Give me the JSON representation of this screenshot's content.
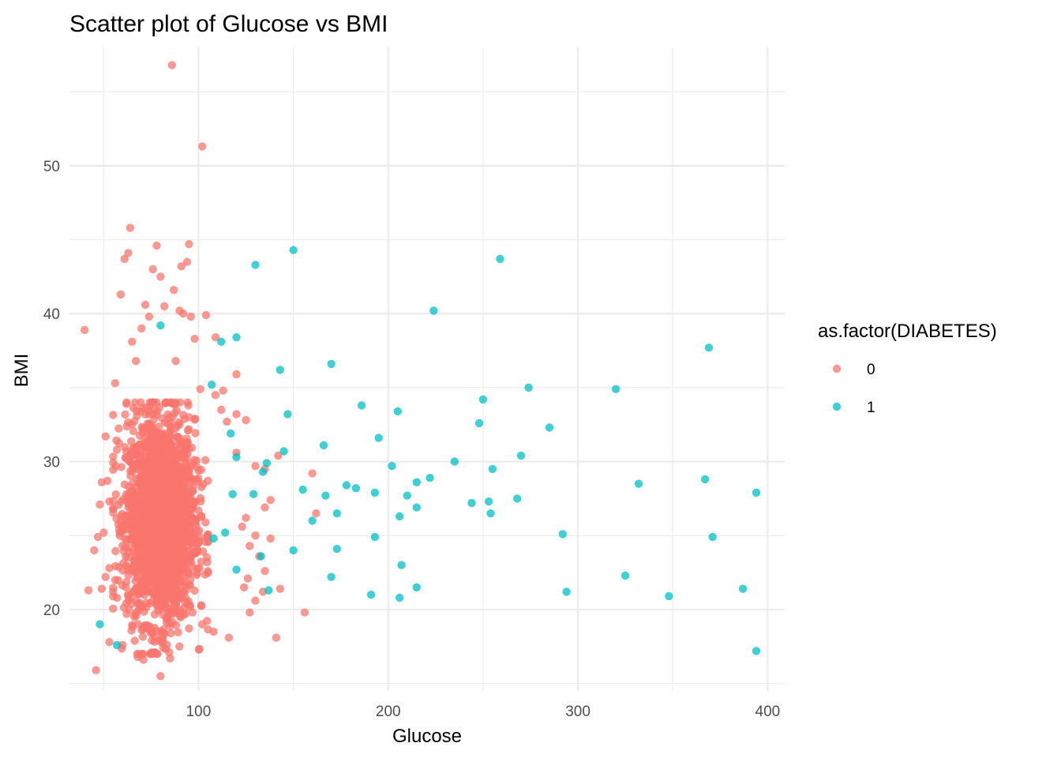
{
  "chart_data": {
    "type": "scatter",
    "title": "Scatter plot of Glucose vs BMI",
    "xlabel": "Glucose",
    "ylabel": "BMI",
    "xlim": [
      32,
      409
    ],
    "ylim": [
      14.5,
      58
    ],
    "x_ticks": [
      100,
      200,
      300,
      400
    ],
    "y_ticks": [
      20,
      30,
      40,
      50
    ],
    "grid": true,
    "legend": {
      "title": "as.factor(DIABETES)",
      "position": "right",
      "entries": [
        "0",
        "1"
      ]
    },
    "colors": {
      "0": "#F8766D",
      "1": "#00BFC4"
    },
    "series": [
      {
        "name": "0",
        "points": [
          [
            86,
            56.8
          ],
          [
            102,
            51.3
          ],
          [
            64,
            45.8
          ],
          [
            95,
            44.7
          ],
          [
            63,
            44.1
          ],
          [
            78,
            44.6
          ],
          [
            61,
            43.7
          ],
          [
            94,
            43.5
          ],
          [
            91,
            43.2
          ],
          [
            76,
            43.0
          ],
          [
            80,
            42.5
          ],
          [
            40,
            38.9
          ],
          [
            59,
            41.3
          ],
          [
            87,
            41.6
          ],
          [
            72,
            40.6
          ],
          [
            90,
            40.2
          ],
          [
            92,
            40.0
          ],
          [
            104,
            39.9
          ],
          [
            74,
            39.8
          ],
          [
            96,
            39.8
          ],
          [
            82,
            40.5
          ],
          [
            109,
            38.4
          ],
          [
            98,
            38.3
          ],
          [
            65,
            38.1
          ],
          [
            67,
            36.8
          ],
          [
            88,
            36.8
          ],
          [
            70,
            39.0
          ],
          [
            120,
            35.9
          ],
          [
            56,
            35.3
          ],
          [
            113,
            34.8
          ],
          [
            109,
            34.5
          ],
          [
            101,
            34.9
          ],
          [
            51,
            31.7
          ],
          [
            62,
            33.9
          ],
          [
            57,
            30.8
          ],
          [
            112,
            33.5
          ],
          [
            115,
            32.7
          ],
          [
            120,
            33.2
          ],
          [
            125,
            32.8
          ],
          [
            120,
            30.6
          ],
          [
            135,
            29.5
          ],
          [
            142,
            30.4
          ],
          [
            130,
            29.7
          ],
          [
            160,
            29.2
          ],
          [
            52,
            28.7
          ],
          [
            49,
            28.6
          ],
          [
            48,
            27.1
          ],
          [
            53,
            27.3
          ],
          [
            138,
            27.4
          ],
          [
            135,
            26.9
          ],
          [
            138,
            24.8
          ],
          [
            162,
            26.5
          ],
          [
            125,
            26.2
          ],
          [
            127,
            24.3
          ],
          [
            123,
            25.6
          ],
          [
            130,
            25.0
          ],
          [
            50,
            25.2
          ],
          [
            45,
            24.0
          ],
          [
            47,
            24.9
          ],
          [
            53,
            22.8
          ],
          [
            51,
            22.2
          ],
          [
            132,
            23.6
          ],
          [
            135,
            22.6
          ],
          [
            126,
            22.1
          ],
          [
            143,
            21.4
          ],
          [
            55,
            21.2
          ],
          [
            42,
            21.3
          ],
          [
            134,
            21.2
          ],
          [
            49,
            21.4
          ],
          [
            124,
            21.5
          ],
          [
            130,
            20.6
          ],
          [
            127,
            19.8
          ],
          [
            156,
            19.8
          ],
          [
            102,
            19.0
          ],
          [
            108,
            18.5
          ],
          [
            116,
            18.1
          ],
          [
            141,
            18.1
          ],
          [
            53,
            17.8
          ],
          [
            60,
            17.6
          ],
          [
            68,
            16.8
          ],
          [
            71,
            16.6
          ],
          [
            77,
            17.1
          ],
          [
            85,
            16.7
          ],
          [
            46,
            15.9
          ],
          [
            80,
            15.5
          ]
        ],
        "dense_cluster": {
          "glucose_range": [
            55,
            105
          ],
          "bmi_range": [
            17,
            34
          ],
          "center": [
            80,
            26
          ]
        }
      },
      {
        "name": "1",
        "points": [
          [
            150,
            44.3
          ],
          [
            259,
            43.7
          ],
          [
            130,
            43.3
          ],
          [
            224,
            40.2
          ],
          [
            80,
            39.2
          ],
          [
            369,
            37.7
          ],
          [
            120,
            38.4
          ],
          [
            112,
            38.1
          ],
          [
            170,
            36.6
          ],
          [
            143,
            36.2
          ],
          [
            107,
            35.2
          ],
          [
            274,
            35.0
          ],
          [
            320,
            34.9
          ],
          [
            250,
            34.2
          ],
          [
            186,
            33.8
          ],
          [
            205,
            33.4
          ],
          [
            147,
            33.2
          ],
          [
            248,
            32.6
          ],
          [
            285,
            32.3
          ],
          [
            117,
            31.9
          ],
          [
            195,
            31.6
          ],
          [
            166,
            31.1
          ],
          [
            270,
            30.4
          ],
          [
            145,
            30.7
          ],
          [
            120,
            30.3
          ],
          [
            136,
            29.9
          ],
          [
            235,
            30.0
          ],
          [
            202,
            29.7
          ],
          [
            255,
            29.5
          ],
          [
            134,
            29.3
          ],
          [
            222,
            28.9
          ],
          [
            367,
            28.8
          ],
          [
            332,
            28.5
          ],
          [
            178,
            28.4
          ],
          [
            183,
            28.2
          ],
          [
            155,
            28.1
          ],
          [
            215,
            28.6
          ],
          [
            193,
            27.9
          ],
          [
            210,
            27.7
          ],
          [
            167,
            27.7
          ],
          [
            394,
            27.9
          ],
          [
            118,
            27.8
          ],
          [
            129,
            27.8
          ],
          [
            268,
            27.5
          ],
          [
            253,
            27.3
          ],
          [
            244,
            27.2
          ],
          [
            215,
            26.9
          ],
          [
            173,
            26.5
          ],
          [
            254,
            26.5
          ],
          [
            206,
            26.3
          ],
          [
            160,
            26.0
          ],
          [
            292,
            25.1
          ],
          [
            114,
            25.2
          ],
          [
            193,
            24.9
          ],
          [
            371,
            24.9
          ],
          [
            108,
            24.8
          ],
          [
            150,
            24.0
          ],
          [
            173,
            24.1
          ],
          [
            133,
            23.6
          ],
          [
            207,
            23.0
          ],
          [
            120,
            22.7
          ],
          [
            325,
            22.3
          ],
          [
            170,
            22.2
          ],
          [
            215,
            21.5
          ],
          [
            137,
            21.3
          ],
          [
            294,
            21.2
          ],
          [
            387,
            21.4
          ],
          [
            191,
            21.0
          ],
          [
            206,
            20.8
          ],
          [
            348,
            20.9
          ],
          [
            57,
            17.6
          ],
          [
            48,
            19.0
          ],
          [
            394,
            17.2
          ]
        ]
      }
    ]
  }
}
